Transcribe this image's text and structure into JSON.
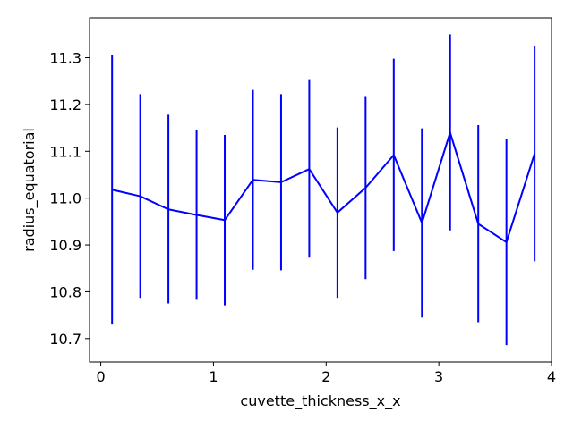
{
  "chart_data": {
    "type": "line",
    "title": "",
    "xlabel": "cuvette_thickness_x_x",
    "ylabel": "radius_equatorial",
    "xlim": [
      -0.1,
      4.0
    ],
    "ylim": [
      10.65,
      11.385
    ],
    "xticks": [
      0,
      1,
      2,
      3,
      4
    ],
    "xtick_labels": [
      "0",
      "1",
      "2",
      "3",
      "4"
    ],
    "yticks": [
      10.7,
      10.8,
      10.9,
      11.0,
      11.1,
      11.2,
      11.3
    ],
    "ytick_labels": [
      "10.7",
      "10.8",
      "10.9",
      "11.0",
      "11.1",
      "11.2",
      "11.3"
    ],
    "grid": false,
    "legend": false,
    "color": "#0000ff",
    "series": [
      {
        "x": [
          0.1,
          0.35,
          0.6,
          0.85,
          1.1,
          1.35,
          1.6,
          1.85,
          2.1,
          2.35,
          2.6,
          2.85,
          3.1,
          3.35,
          3.6,
          3.85
        ],
        "y": [
          11.018,
          11.004,
          10.976,
          10.964,
          10.953,
          11.039,
          11.034,
          11.062,
          10.969,
          11.022,
          11.092,
          10.947,
          11.14,
          10.945,
          10.906,
          11.095
        ],
        "yerr_low": [
          10.73,
          10.787,
          10.775,
          10.783,
          10.771,
          10.847,
          10.846,
          10.873,
          10.787,
          10.827,
          10.887,
          10.745,
          10.931,
          10.735,
          10.686,
          10.865
        ],
        "yerr_high": [
          11.306,
          11.222,
          11.178,
          11.145,
          11.135,
          11.231,
          11.222,
          11.254,
          11.151,
          11.218,
          11.298,
          11.149,
          11.35,
          11.156,
          11.126,
          11.325
        ]
      }
    ]
  }
}
